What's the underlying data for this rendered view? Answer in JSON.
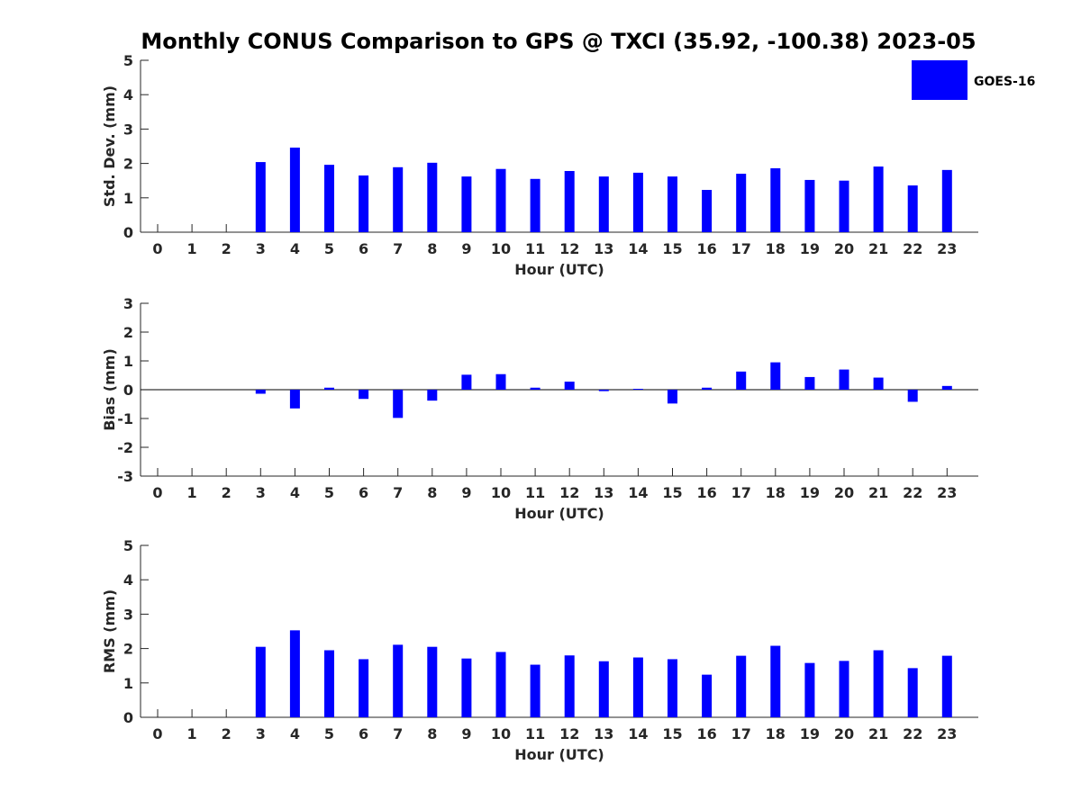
{
  "chart_data": {
    "type": "bar",
    "title": "Monthly CONUS Comparison to GPS @ TXCI (35.92, -100.38) 2023-05",
    "legend": {
      "label": "GOES-16",
      "color": "#0000ff",
      "placement": "top-right"
    },
    "categories": [
      "0",
      "1",
      "2",
      "3",
      "4",
      "5",
      "6",
      "7",
      "8",
      "9",
      "10",
      "11",
      "12",
      "13",
      "14",
      "15",
      "16",
      "17",
      "18",
      "19",
      "20",
      "21",
      "22",
      "23"
    ],
    "panels": [
      {
        "name": "std-dev",
        "xlabel": "Hour (UTC)",
        "ylabel": "Std. Dev. (mm)",
        "ylim": [
          0,
          5
        ],
        "yticks": [
          "0",
          "1",
          "2",
          "3",
          "4",
          "5"
        ],
        "series": [
          {
            "name": "GOES-16",
            "values": [
              null,
              null,
              null,
              2.04,
              2.46,
              1.96,
              1.65,
              1.89,
              2.02,
              1.62,
              1.84,
              1.55,
              1.78,
              1.62,
              1.73,
              1.62,
              1.23,
              1.7,
              1.86,
              1.52,
              1.5,
              1.91,
              1.36,
              1.81
            ]
          }
        ]
      },
      {
        "name": "bias",
        "xlabel": "Hour (UTC)",
        "ylabel": "Bias (mm)",
        "ylim": [
          -3,
          3
        ],
        "yticks": [
          "-3",
          "-2",
          "-1",
          "0",
          "1",
          "2",
          "3"
        ],
        "series": [
          {
            "name": "GOES-16",
            "values": [
              null,
              null,
              null,
              -0.14,
              -0.65,
              0.07,
              -0.32,
              -0.98,
              -0.38,
              0.52,
              0.54,
              0.07,
              0.28,
              -0.05,
              0.03,
              -0.48,
              0.07,
              0.63,
              0.95,
              0.44,
              0.7,
              0.42,
              -0.42,
              0.13
            ]
          }
        ]
      },
      {
        "name": "rms",
        "xlabel": "Hour (UTC)",
        "ylabel": "RMS (mm)",
        "ylim": [
          0,
          5
        ],
        "yticks": [
          "0",
          "1",
          "2",
          "3",
          "4",
          "5"
        ],
        "series": [
          {
            "name": "GOES-16",
            "values": [
              null,
              null,
              null,
              2.05,
              2.53,
              1.95,
              1.69,
              2.11,
              2.05,
              1.71,
              1.9,
              1.53,
              1.8,
              1.63,
              1.74,
              1.69,
              1.24,
              1.79,
              2.08,
              1.58,
              1.64,
              1.95,
              1.43,
              1.79
            ]
          }
        ]
      }
    ]
  }
}
